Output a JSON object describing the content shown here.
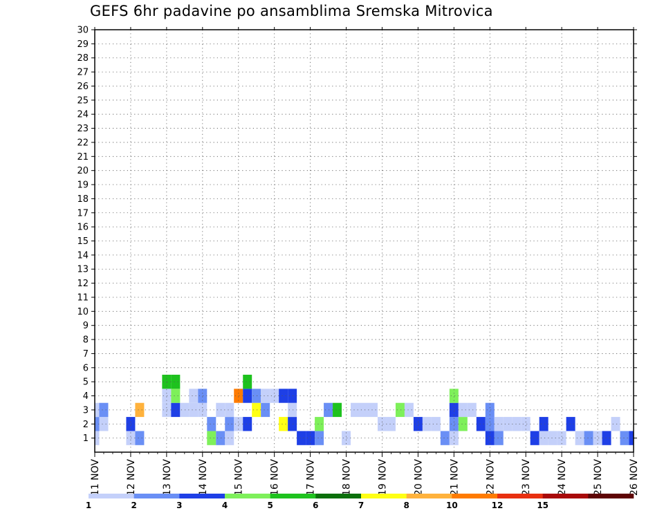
{
  "chart_data": {
    "type": "heatmap",
    "title": "GEFS 6hr padavine po ansamblima Sremska Mitrovica",
    "x_tick_labels": [
      "11 NOV",
      "12 NOV",
      "13 NOV",
      "14 NOV",
      "15 NOV",
      "16 NOV",
      "17 NOV",
      "18 NOV",
      "19 NOV",
      "20 NOV",
      "21 NOV",
      "22 NOV",
      "23 NOV",
      "24 NOV",
      "25 NOV",
      "26 NOV"
    ],
    "y_tick_labels": [
      "1",
      "2",
      "3",
      "4",
      "5",
      "6",
      "7",
      "8",
      "9",
      "10",
      "11",
      "12",
      "13",
      "14",
      "15",
      "16",
      "17",
      "18",
      "19",
      "20",
      "21",
      "22",
      "23",
      "24",
      "25",
      "26",
      "27",
      "28",
      "29",
      "30"
    ],
    "x_unit": "6-hour step since 11 NOV 00Z",
    "y_range": [
      0,
      30
    ],
    "x_range": [
      0,
      60
    ],
    "grid": true,
    "legend": {
      "position": "bottom",
      "bounds": [
        1,
        2,
        3,
        4,
        5,
        6,
        7,
        8,
        10,
        12,
        15,
        20
      ],
      "colors": [
        "#c4d0fa",
        "#6a8ff5",
        "#1e3fe6",
        "#7ef05a",
        "#1ec21e",
        "#0b6f0b",
        "#ffff14",
        "#ffb23c",
        "#ff7b00",
        "#e83010",
        "#a80a0a",
        "#5e0505"
      ]
    },
    "cells": [
      [
        0,
        1,
        1
      ],
      [
        0,
        2,
        2
      ],
      [
        0,
        3,
        1
      ],
      [
        1,
        2,
        1
      ],
      [
        1,
        3,
        2
      ],
      [
        4,
        1,
        1
      ],
      [
        4,
        2,
        3
      ],
      [
        5,
        1,
        2
      ],
      [
        5,
        3,
        8
      ],
      [
        8,
        3,
        1
      ],
      [
        8,
        4,
        1
      ],
      [
        8,
        5,
        5
      ],
      [
        9,
        3,
        3
      ],
      [
        9,
        4,
        4
      ],
      [
        9,
        5,
        5
      ],
      [
        10,
        3,
        1
      ],
      [
        11,
        3,
        1
      ],
      [
        11,
        4,
        1
      ],
      [
        12,
        3,
        1
      ],
      [
        12,
        4,
        2
      ],
      [
        13,
        1,
        4
      ],
      [
        13,
        2,
        2
      ],
      [
        14,
        1,
        2
      ],
      [
        14,
        3,
        1
      ],
      [
        15,
        1,
        1
      ],
      [
        15,
        2,
        2
      ],
      [
        15,
        3,
        1
      ],
      [
        16,
        2,
        1
      ],
      [
        16,
        4,
        9
      ],
      [
        17,
        2,
        3
      ],
      [
        17,
        4,
        3
      ],
      [
        17,
        5,
        5
      ],
      [
        18,
        3,
        7
      ],
      [
        18,
        4,
        2
      ],
      [
        19,
        3,
        2
      ],
      [
        19,
        4,
        1
      ],
      [
        20,
        4,
        1
      ],
      [
        21,
        2,
        7
      ],
      [
        21,
        4,
        3
      ],
      [
        22,
        2,
        3
      ],
      [
        22,
        3,
        1
      ],
      [
        22,
        4,
        3
      ],
      [
        23,
        1,
        3
      ],
      [
        24,
        1,
        3
      ],
      [
        25,
        1,
        2
      ],
      [
        25,
        2,
        4
      ],
      [
        26,
        3,
        2
      ],
      [
        27,
        3,
        5
      ],
      [
        28,
        1,
        1
      ],
      [
        29,
        3,
        1
      ],
      [
        30,
        3,
        1
      ],
      [
        31,
        3,
        1
      ],
      [
        32,
        2,
        1
      ],
      [
        33,
        2,
        1
      ],
      [
        34,
        3,
        4
      ],
      [
        35,
        3,
        1
      ],
      [
        36,
        2,
        3
      ],
      [
        37,
        2,
        1
      ],
      [
        38,
        2,
        1
      ],
      [
        39,
        1,
        2
      ],
      [
        40,
        1,
        1
      ],
      [
        40,
        2,
        2
      ],
      [
        40,
        3,
        3
      ],
      [
        40,
        4,
        4
      ],
      [
        41,
        2,
        4
      ],
      [
        41,
        3,
        1
      ],
      [
        42,
        3,
        1
      ],
      [
        43,
        2,
        3
      ],
      [
        44,
        1,
        3
      ],
      [
        44,
        2,
        2
      ],
      [
        44,
        3,
        2
      ],
      [
        45,
        1,
        2
      ],
      [
        45,
        2,
        1
      ],
      [
        46,
        2,
        1
      ],
      [
        47,
        2,
        1
      ],
      [
        48,
        2,
        1
      ],
      [
        49,
        1,
        3
      ],
      [
        50,
        1,
        1
      ],
      [
        50,
        2,
        3
      ],
      [
        51,
        1,
        1
      ],
      [
        52,
        1,
        1
      ],
      [
        53,
        2,
        3
      ],
      [
        54,
        1,
        1
      ],
      [
        55,
        1,
        2
      ],
      [
        56,
        1,
        1
      ],
      [
        57,
        1,
        3
      ],
      [
        58,
        2,
        1
      ],
      [
        59,
        1,
        2
      ],
      [
        60,
        1,
        3
      ]
    ]
  }
}
